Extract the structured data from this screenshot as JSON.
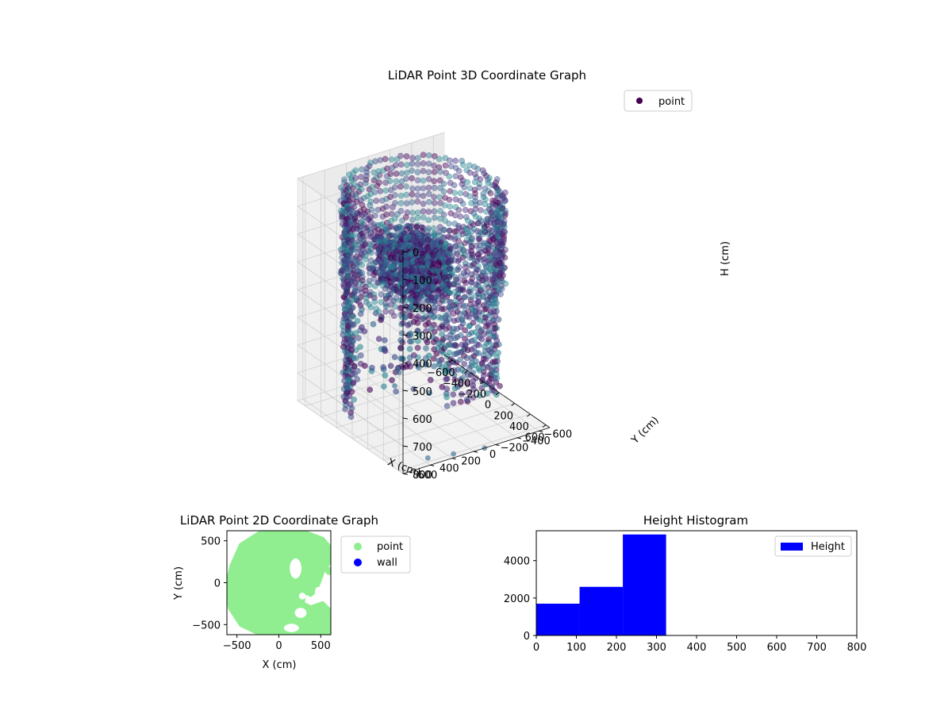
{
  "chart_data": [
    {
      "type": "scatter3d",
      "title": "LiDAR Point 3D Coordinate Graph",
      "xlabel": "X (cm)",
      "ylabel": "Y (cm)",
      "zlabel": "H (cm)",
      "xlim": [
        -700,
        650
      ],
      "ylim": [
        -700,
        650
      ],
      "zlim": [
        0,
        800
      ],
      "z_inverted": true,
      "xticks": [
        -600,
        -400,
        -200,
        0,
        200,
        400,
        600
      ],
      "yticks": [
        -600,
        -400,
        -200,
        0,
        200,
        400,
        600
      ],
      "zticks": [
        0,
        100,
        200,
        300,
        400,
        500,
        600,
        700,
        800
      ],
      "grid": true,
      "legend": {
        "position": "top-right",
        "entries": [
          "point"
        ]
      },
      "colormap": "viridis",
      "marker_color": "#440154",
      "series": [
        {
          "name": "point",
          "structure": {
            "wall_ring": {
              "radius_range": [
                560,
                620
              ],
              "h_range": [
                0,
                330
              ],
              "arc_deg": [
                0,
                360
              ]
            },
            "lower_wall_segments": [
              {
                "arc_deg": [
                  100,
                  160
                ],
                "h_range": [
                  330,
                  760
                ]
              },
              {
                "arc_deg": [
                  200,
                  290
                ],
                "h_range": [
                  330,
                  760
                ]
              },
              {
                "arc_deg": [
                  330,
                  20
                ],
                "h_range": [
                  330,
                  650
                ]
              }
            ],
            "central_cluster": {
              "x_range": [
                -250,
                300
              ],
              "y_range": [
                -100,
                300
              ],
              "h_range": [
                150,
                320
              ]
            },
            "outliers": [
              {
                "x": -650,
                "y": -250,
                "h": 800
              },
              {
                "x": -500,
                "y": -100,
                "h": 800
              },
              {
                "x": 550,
                "y": 350,
                "h": 800
              },
              {
                "x": 600,
                "y": 150,
                "h": 800
              },
              {
                "x": 650,
                "y": -100,
                "h": 800
              }
            ]
          }
        }
      ]
    },
    {
      "type": "scatter",
      "title": "LiDAR Point 2D Coordinate Graph",
      "xlabel": "X (cm)",
      "ylabel": "Y (cm)",
      "xlim": [
        -620,
        620
      ],
      "ylim": [
        -620,
        620
      ],
      "xticks": [
        -500,
        0,
        500
      ],
      "yticks": [
        -500,
        0,
        500
      ],
      "legend": {
        "position": "outside-right",
        "entries": [
          "point",
          "wall"
        ]
      },
      "series": [
        {
          "name": "point",
          "color": "#90ee90",
          "region_outline": [
            [
              -180,
              620
            ],
            [
              250,
              620
            ],
            [
              520,
              520
            ],
            [
              620,
              400
            ],
            [
              600,
              250
            ],
            [
              520,
              130
            ],
            [
              480,
              20
            ],
            [
              440,
              -80
            ],
            [
              380,
              -140
            ],
            [
              300,
              -100
            ],
            [
              280,
              -250
            ],
            [
              380,
              -300
            ],
            [
              520,
              -250
            ],
            [
              620,
              -350
            ],
            [
              620,
              -600
            ],
            [
              300,
              -620
            ],
            [
              -200,
              -620
            ],
            [
              -450,
              -500
            ],
            [
              -580,
              -300
            ],
            [
              -620,
              -50
            ],
            [
              -560,
              200
            ],
            [
              -450,
              450
            ]
          ],
          "holes": [
            {
              "x": 200,
              "y": 170,
              "rx": 70,
              "ry": 120
            },
            {
              "x": 280,
              "y": -160,
              "rx": 40,
              "ry": 40
            },
            {
              "x": 260,
              "y": -360,
              "rx": 70,
              "ry": 60
            },
            {
              "x": 150,
              "y": -540,
              "rx": 90,
              "ry": 50
            },
            {
              "x": 470,
              "y": -110,
              "rx": 40,
              "ry": 60
            }
          ],
          "extra_points": [
            {
              "x": 600,
              "y": 140
            }
          ]
        },
        {
          "name": "wall",
          "color": "#0000ff",
          "values": []
        }
      ]
    },
    {
      "type": "bar",
      "title": "Height Histogram",
      "xlim": [
        0,
        800
      ],
      "ylim": [
        0,
        5600
      ],
      "xticks": [
        0,
        100,
        200,
        300,
        400,
        500,
        600,
        700,
        800
      ],
      "yticks": [
        0,
        2000,
        4000
      ],
      "legend": {
        "position": "top-right",
        "entries": [
          "Height"
        ]
      },
      "series": [
        {
          "name": "Height",
          "color": "#0000ff",
          "bins": [
            {
              "x0": 0,
              "x1": 108,
              "count": 1700
            },
            {
              "x0": 108,
              "x1": 216,
              "count": 2600
            },
            {
              "x0": 216,
              "x1": 324,
              "count": 5400
            }
          ]
        }
      ]
    }
  ]
}
